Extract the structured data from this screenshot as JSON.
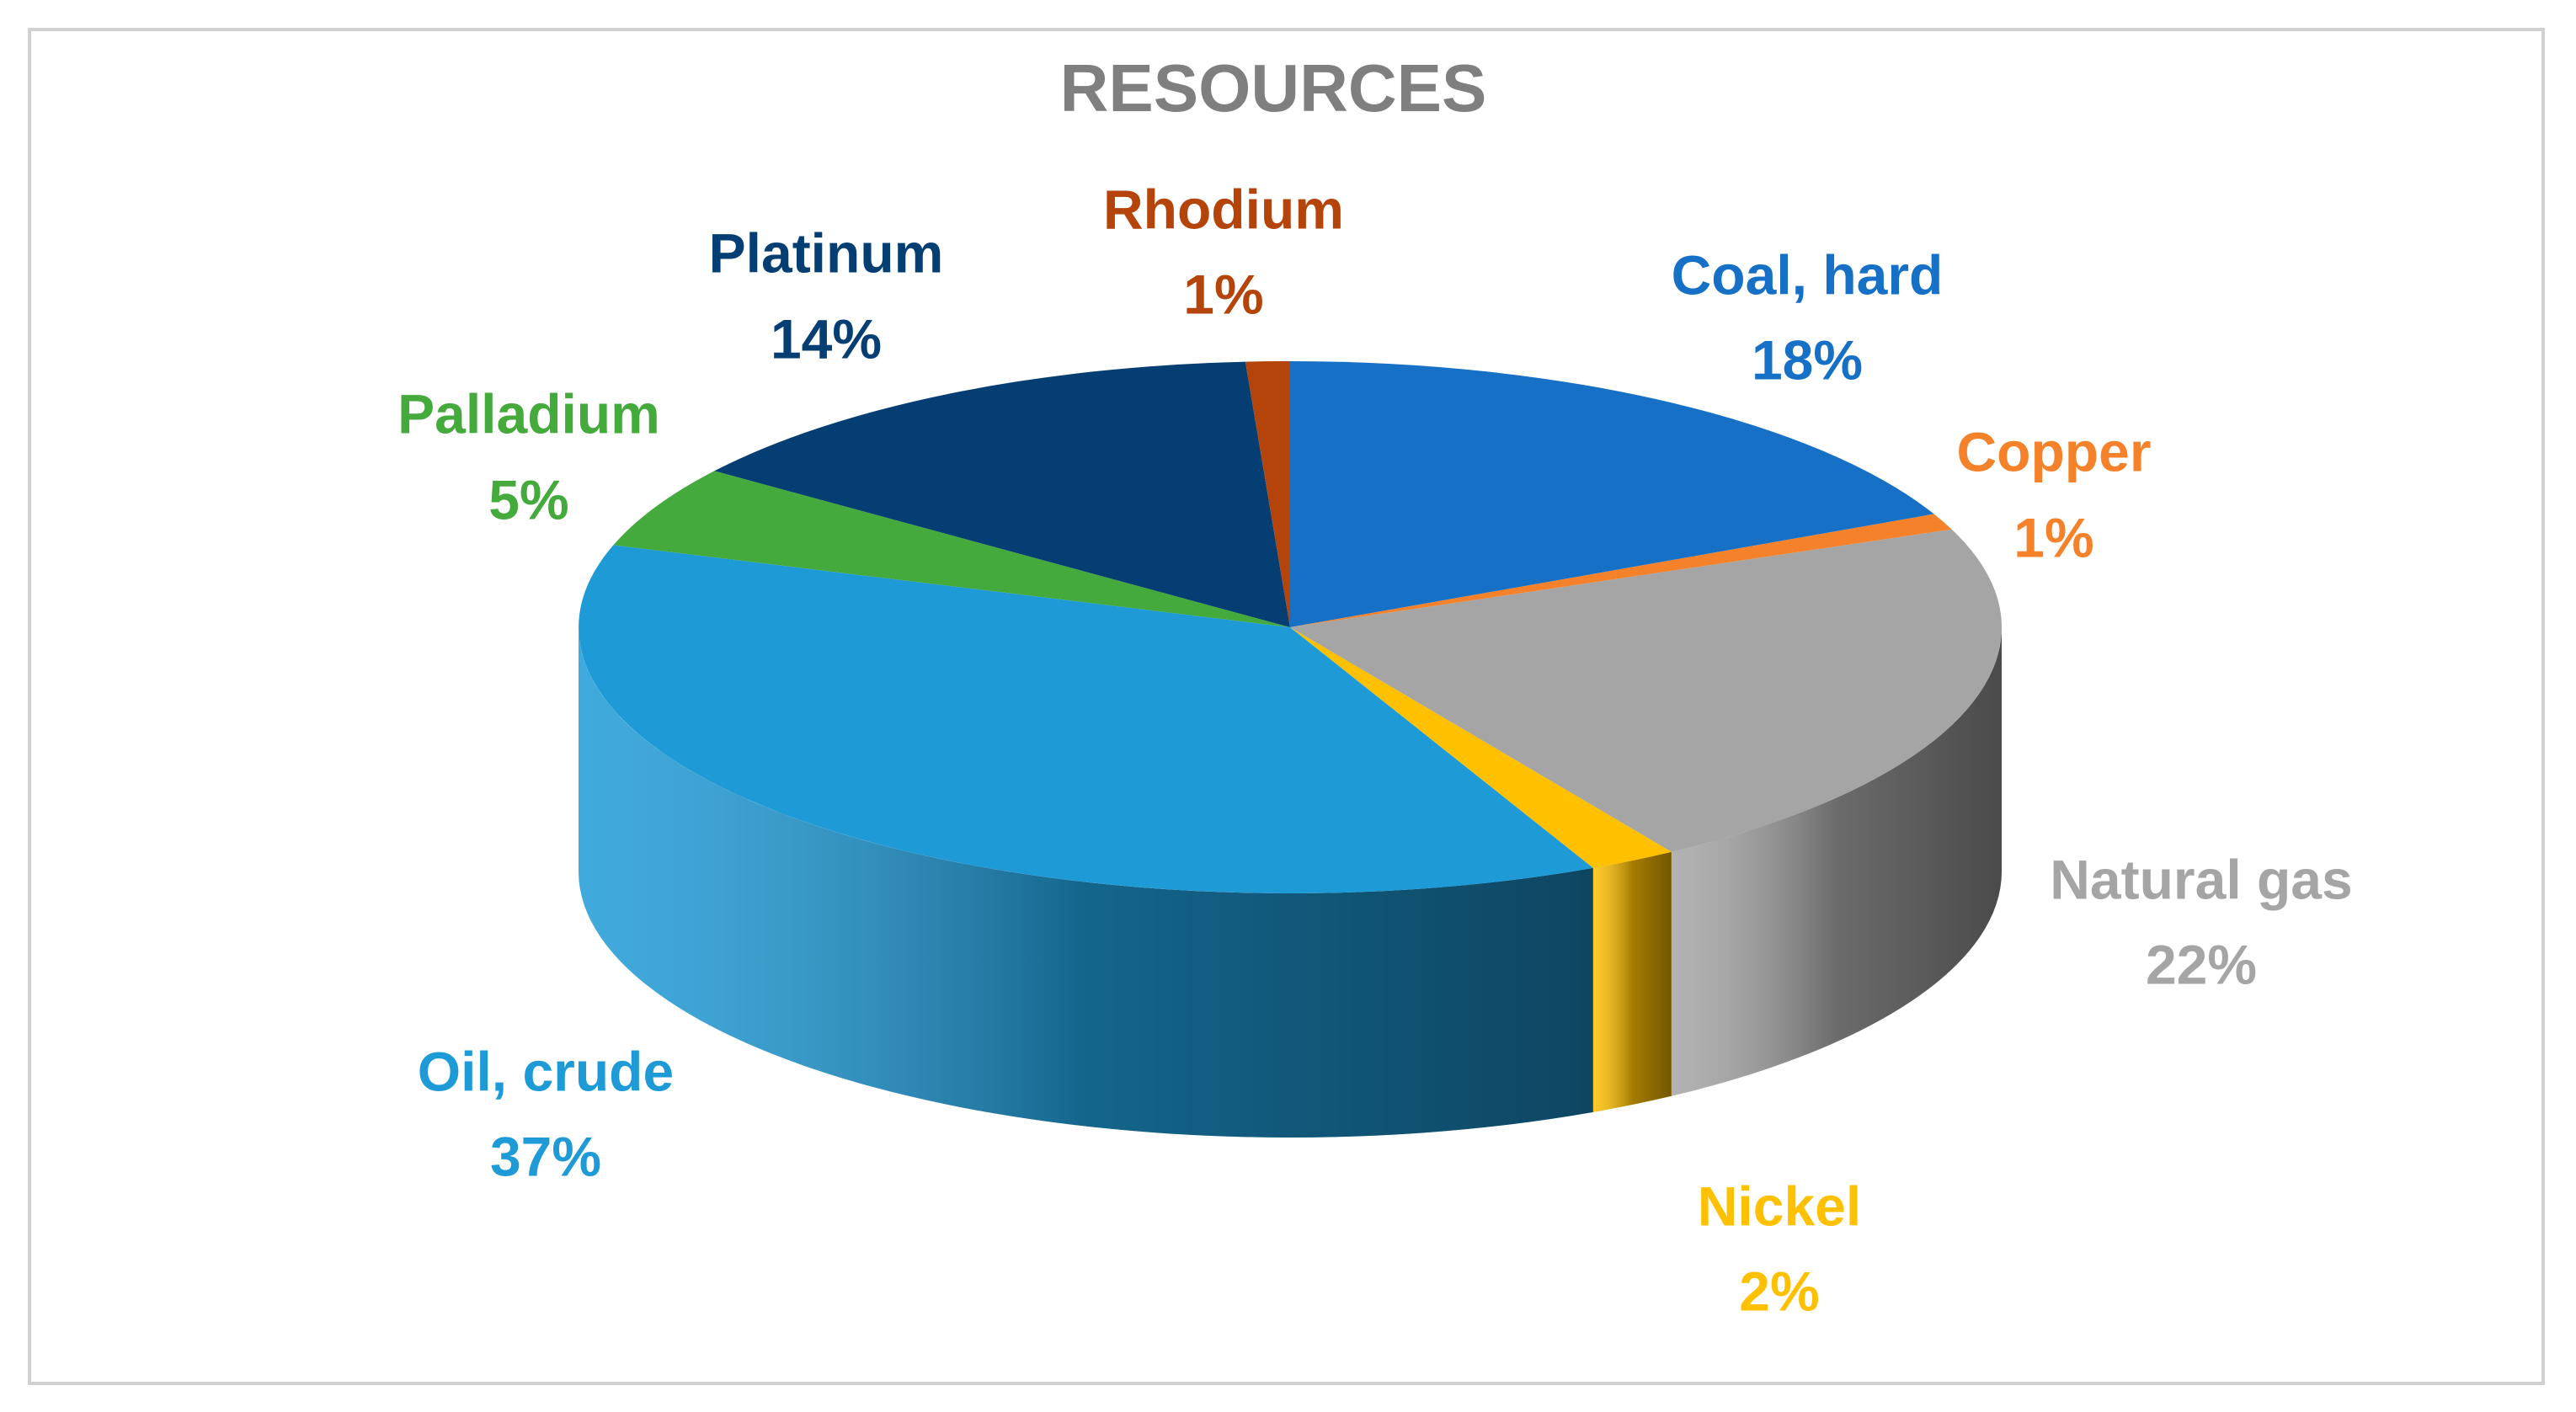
{
  "chart_data": {
    "type": "pie",
    "title": "RESOURCES",
    "categories": [
      "Coal, hard",
      "Copper",
      "Natural gas",
      "Nickel",
      "Oil, crude",
      "Palladium",
      "Platinum",
      "Rhodium"
    ],
    "values": [
      18,
      1,
      22,
      2,
      37,
      5,
      14,
      1
    ],
    "value_labels": [
      "18%",
      "1%",
      "22%",
      "2%",
      "37%",
      "5%",
      "14%",
      "1%"
    ],
    "colors": [
      "#1570c6",
      "#f5822a",
      "#a5a5a5",
      "#ffc000",
      "#1e9bd7",
      "#44aa3c",
      "#043e72",
      "#b5440b"
    ]
  }
}
